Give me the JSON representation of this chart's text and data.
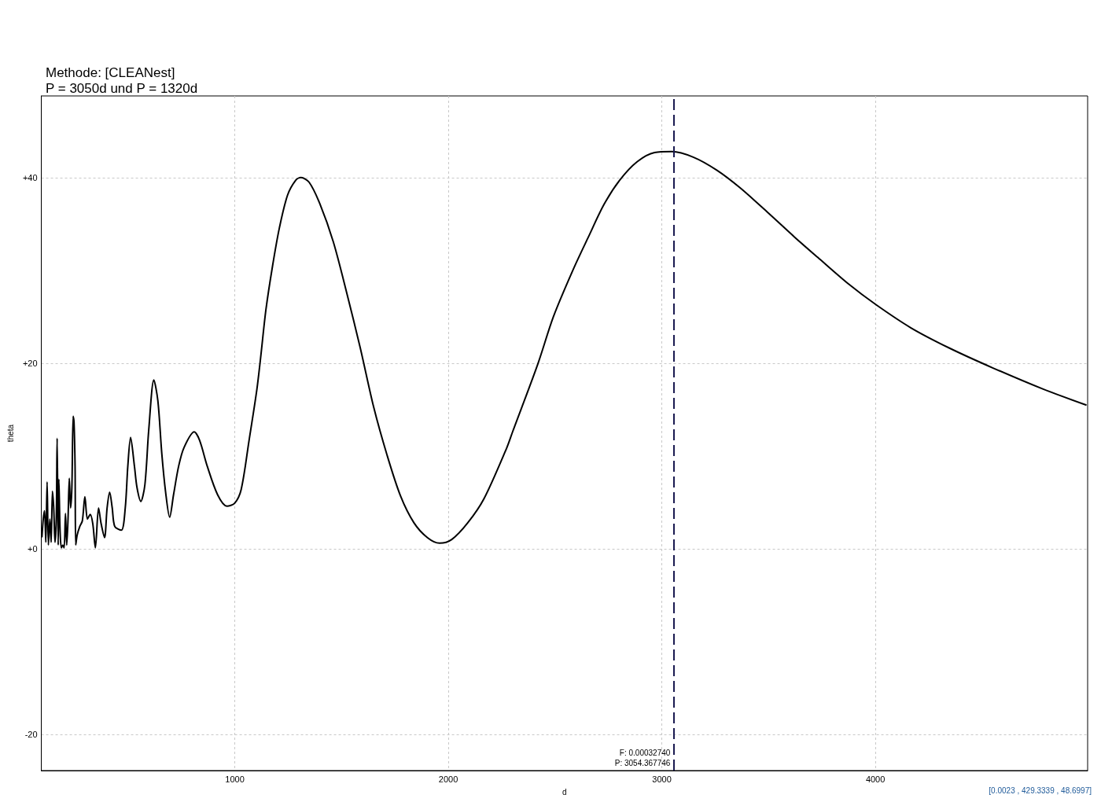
{
  "chart_data": {
    "type": "line",
    "title": "Methode: [CLEANest]",
    "subtitle": "P = 3050d und P = 1320d",
    "xlabel": "d",
    "ylabel": "theta",
    "x": [
      97,
      103,
      109,
      115,
      121,
      127,
      134,
      140,
      146,
      152,
      158,
      164,
      168,
      173,
      176,
      182,
      188,
      195,
      201,
      207,
      213,
      219,
      225,
      231,
      237,
      243,
      247,
      252,
      255,
      262,
      274,
      286,
      298,
      310,
      323,
      335,
      347,
      362,
      374,
      390,
      402,
      414,
      426,
      438,
      469,
      487,
      499,
      512,
      530,
      542,
      560,
      579,
      597,
      621,
      640,
      658,
      676,
      695,
      713,
      737,
      762,
      810,
      835,
      871,
      920,
      963,
      999,
      1030,
      1067,
      1103,
      1121,
      1146,
      1177,
      1209,
      1247,
      1285,
      1310,
      1348,
      1398,
      1461,
      1524,
      1587,
      1650,
      1713,
      1776,
      1839,
      1902,
      1959,
      2016,
      2091,
      2167,
      2274,
      2301,
      2419,
      2492,
      2583,
      2656,
      2729,
      2802,
      2884,
      2966,
      3047,
      3147,
      3257,
      3366,
      3493,
      3621,
      3730,
      3876,
      4003,
      4167,
      4349,
      4549,
      4786,
      4986
    ],
    "values": [
      1.3,
      3.2,
      4.1,
      0.7,
      7.2,
      0.4,
      3.2,
      0.7,
      6.2,
      4.4,
      0.7,
      3.2,
      11.9,
      0.4,
      7.5,
      1.8,
      0.1,
      0.4,
      0.1,
      3.8,
      0.4,
      3.2,
      7.6,
      4.4,
      6.6,
      14.3,
      13.7,
      8.9,
      0.4,
      1.5,
      2.4,
      3.0,
      5.6,
      3.2,
      3.7,
      2.7,
      0.1,
      4.4,
      2.7,
      1.2,
      4.4,
      6.1,
      4.4,
      2.4,
      2.0,
      4.4,
      8.9,
      12.0,
      8.9,
      6.6,
      5.1,
      6.9,
      12.8,
      18.2,
      15.9,
      10.3,
      6.1,
      3.4,
      5.8,
      8.9,
      10.9,
      12.6,
      11.7,
      8.9,
      5.8,
      4.6,
      4.9,
      6.4,
      11.7,
      17.1,
      20.6,
      25.8,
      30.5,
      34.6,
      38.1,
      39.7,
      40.0,
      39.5,
      37.2,
      33.1,
      27.6,
      21.7,
      15.3,
      10.1,
      5.7,
      2.8,
      1.2,
      0.6,
      1.0,
      2.8,
      5.4,
      10.9,
      12.6,
      19.9,
      25.0,
      30.0,
      33.6,
      37.1,
      39.7,
      41.7,
      42.7,
      42.8,
      42.2,
      40.8,
      38.9,
      36.3,
      33.6,
      31.4,
      28.5,
      26.3,
      23.8,
      21.6,
      19.5,
      17.2,
      15.5
    ],
    "color": "#000000",
    "xlim": [
      94,
      4994
    ],
    "ylim": [
      -23.9,
      48.8
    ],
    "xticks": [
      1000,
      2000,
      3000,
      4000
    ],
    "yticks": [
      {
        "value": 40,
        "label": "+40"
      },
      {
        "value": 20,
        "label": "+20"
      },
      {
        "value": 0,
        "label": "+0"
      },
      -20
    ],
    "grid": true,
    "marker": "none",
    "ref_lines": [
      {
        "axis": "x",
        "value": 3054.367746,
        "label": "F: 0.00032740\nP: 3054.367746",
        "color": "#1a1a50",
        "line_style": "dashed"
      }
    ],
    "annotations": [
      "[0.0023 , 429.3339 , 48.6997]"
    ]
  }
}
